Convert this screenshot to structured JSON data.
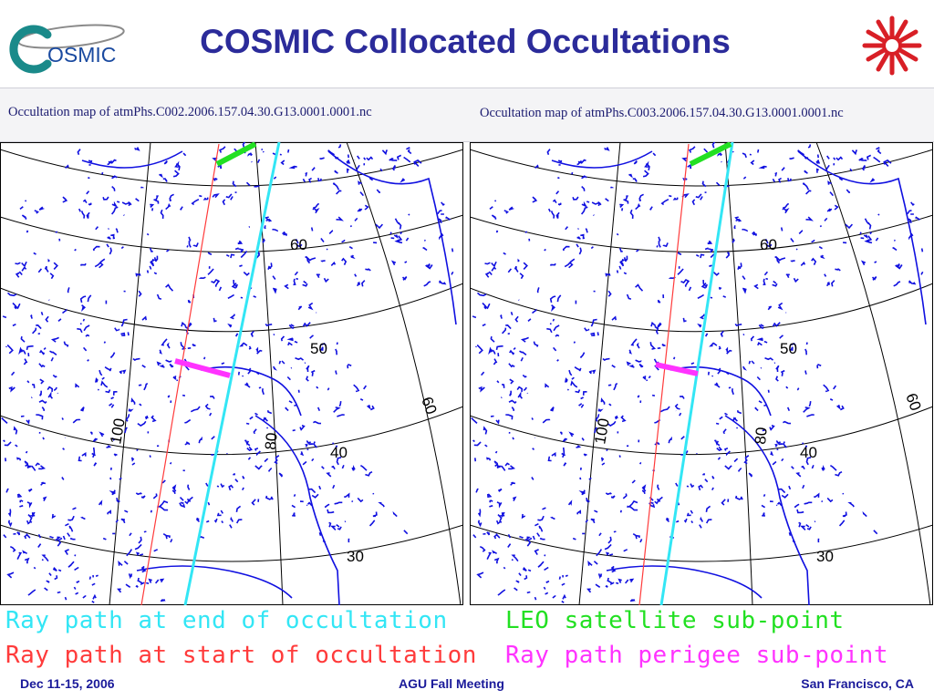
{
  "header": {
    "title": "COSMIC Collocated Occultations",
    "logo_text": "OSMIC",
    "logo_icon": "cosmic-logo-icon",
    "emblem_icon": "red-star-emblem-icon"
  },
  "maps": [
    {
      "caption": "Occultation map of atmPhs.C002.2006.157.04.30.G13.0001.0001.nc",
      "lat_labels": [
        "60",
        "50",
        "40",
        "30"
      ],
      "lon_labels": [
        "100",
        "80",
        "60"
      ]
    },
    {
      "caption": "Occultation map of atmPhs.C003.2006.157.04.30.G13.0001.0001.nc",
      "lat_labels": [
        "60",
        "50",
        "40",
        "30"
      ],
      "lon_labels": [
        "100",
        "80",
        "60"
      ]
    }
  ],
  "legend": {
    "ray_end": "Ray path at end of occultation",
    "leo": "LEO satellite sub-point",
    "ray_start": "Ray path at start of occultation",
    "perigee": "Ray path perigee sub-point"
  },
  "colors": {
    "title": "#2b2b9a",
    "coast": "#1010e0",
    "ray_end": "#33e6f5",
    "ray_start": "#ff3b3b",
    "leo": "#22e022",
    "perigee": "#ff33ff",
    "emblem": "#d81f26"
  },
  "footer": {
    "left": "Dec 11-15, 2006",
    "center": "AGU Fall Meeting",
    "right": "San Francisco, CA"
  }
}
